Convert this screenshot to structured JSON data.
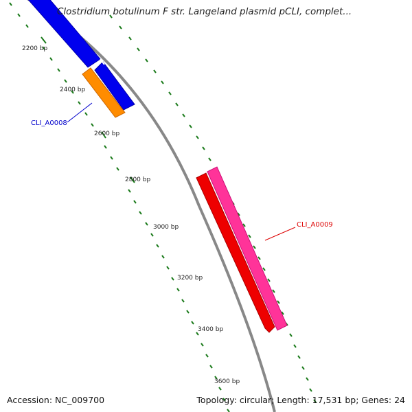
{
  "title": "Clostridium botulinum F str. Langeland plasmid pCLI, complet...",
  "footer": {
    "accession": "Accession: NC_009700",
    "summary": "Topology: circular; Length: 17,531 bp; Genes: 24"
  },
  "ticks": [
    {
      "label": "2200 bp"
    },
    {
      "label": "2400 bp"
    },
    {
      "label": "2600 bp"
    },
    {
      "label": "2800 bp"
    },
    {
      "label": "3000 bp"
    },
    {
      "label": "3200 bp"
    },
    {
      "label": "3400 bp"
    },
    {
      "label": "3600 bp"
    }
  ],
  "genes": [
    {
      "label": "CLI_A0008",
      "color": "#0000cc"
    },
    {
      "label": "CLI_A0009",
      "color": "#dd0000"
    }
  ],
  "colors": {
    "backbone": "#888888",
    "tick": "#1a7a1a",
    "blue_feature": "#0000ee",
    "orange_feature": "#ff8c00",
    "red_feature": "#ee0000",
    "pink_feature": "#ff3399"
  }
}
